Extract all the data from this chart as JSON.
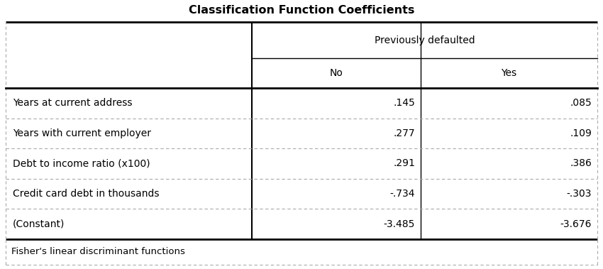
{
  "title": "Classification Function Coefficients",
  "col_header_group": "Previously defaulted",
  "col_headers": [
    "No",
    "Yes"
  ],
  "row_labels": [
    "Years at current address",
    "Years with current employer",
    "Debt to income ratio (x100)",
    "Credit card debt in thousands",
    "(Constant)"
  ],
  "values_no": [
    ".145",
    ".277",
    ".291",
    "-.734",
    "-3.485"
  ],
  "values_yes": [
    ".085",
    ".109",
    ".386",
    "-.303",
    "-3.676"
  ],
  "footnote": "Fisher's linear discriminant functions",
  "bg_color": "#ffffff",
  "border_color": "#000000",
  "dashed_color": "#aaaaaa",
  "text_color": "#000000",
  "title_fontsize": 11.5,
  "header_fontsize": 10,
  "data_fontsize": 10,
  "footnote_fontsize": 9.5
}
